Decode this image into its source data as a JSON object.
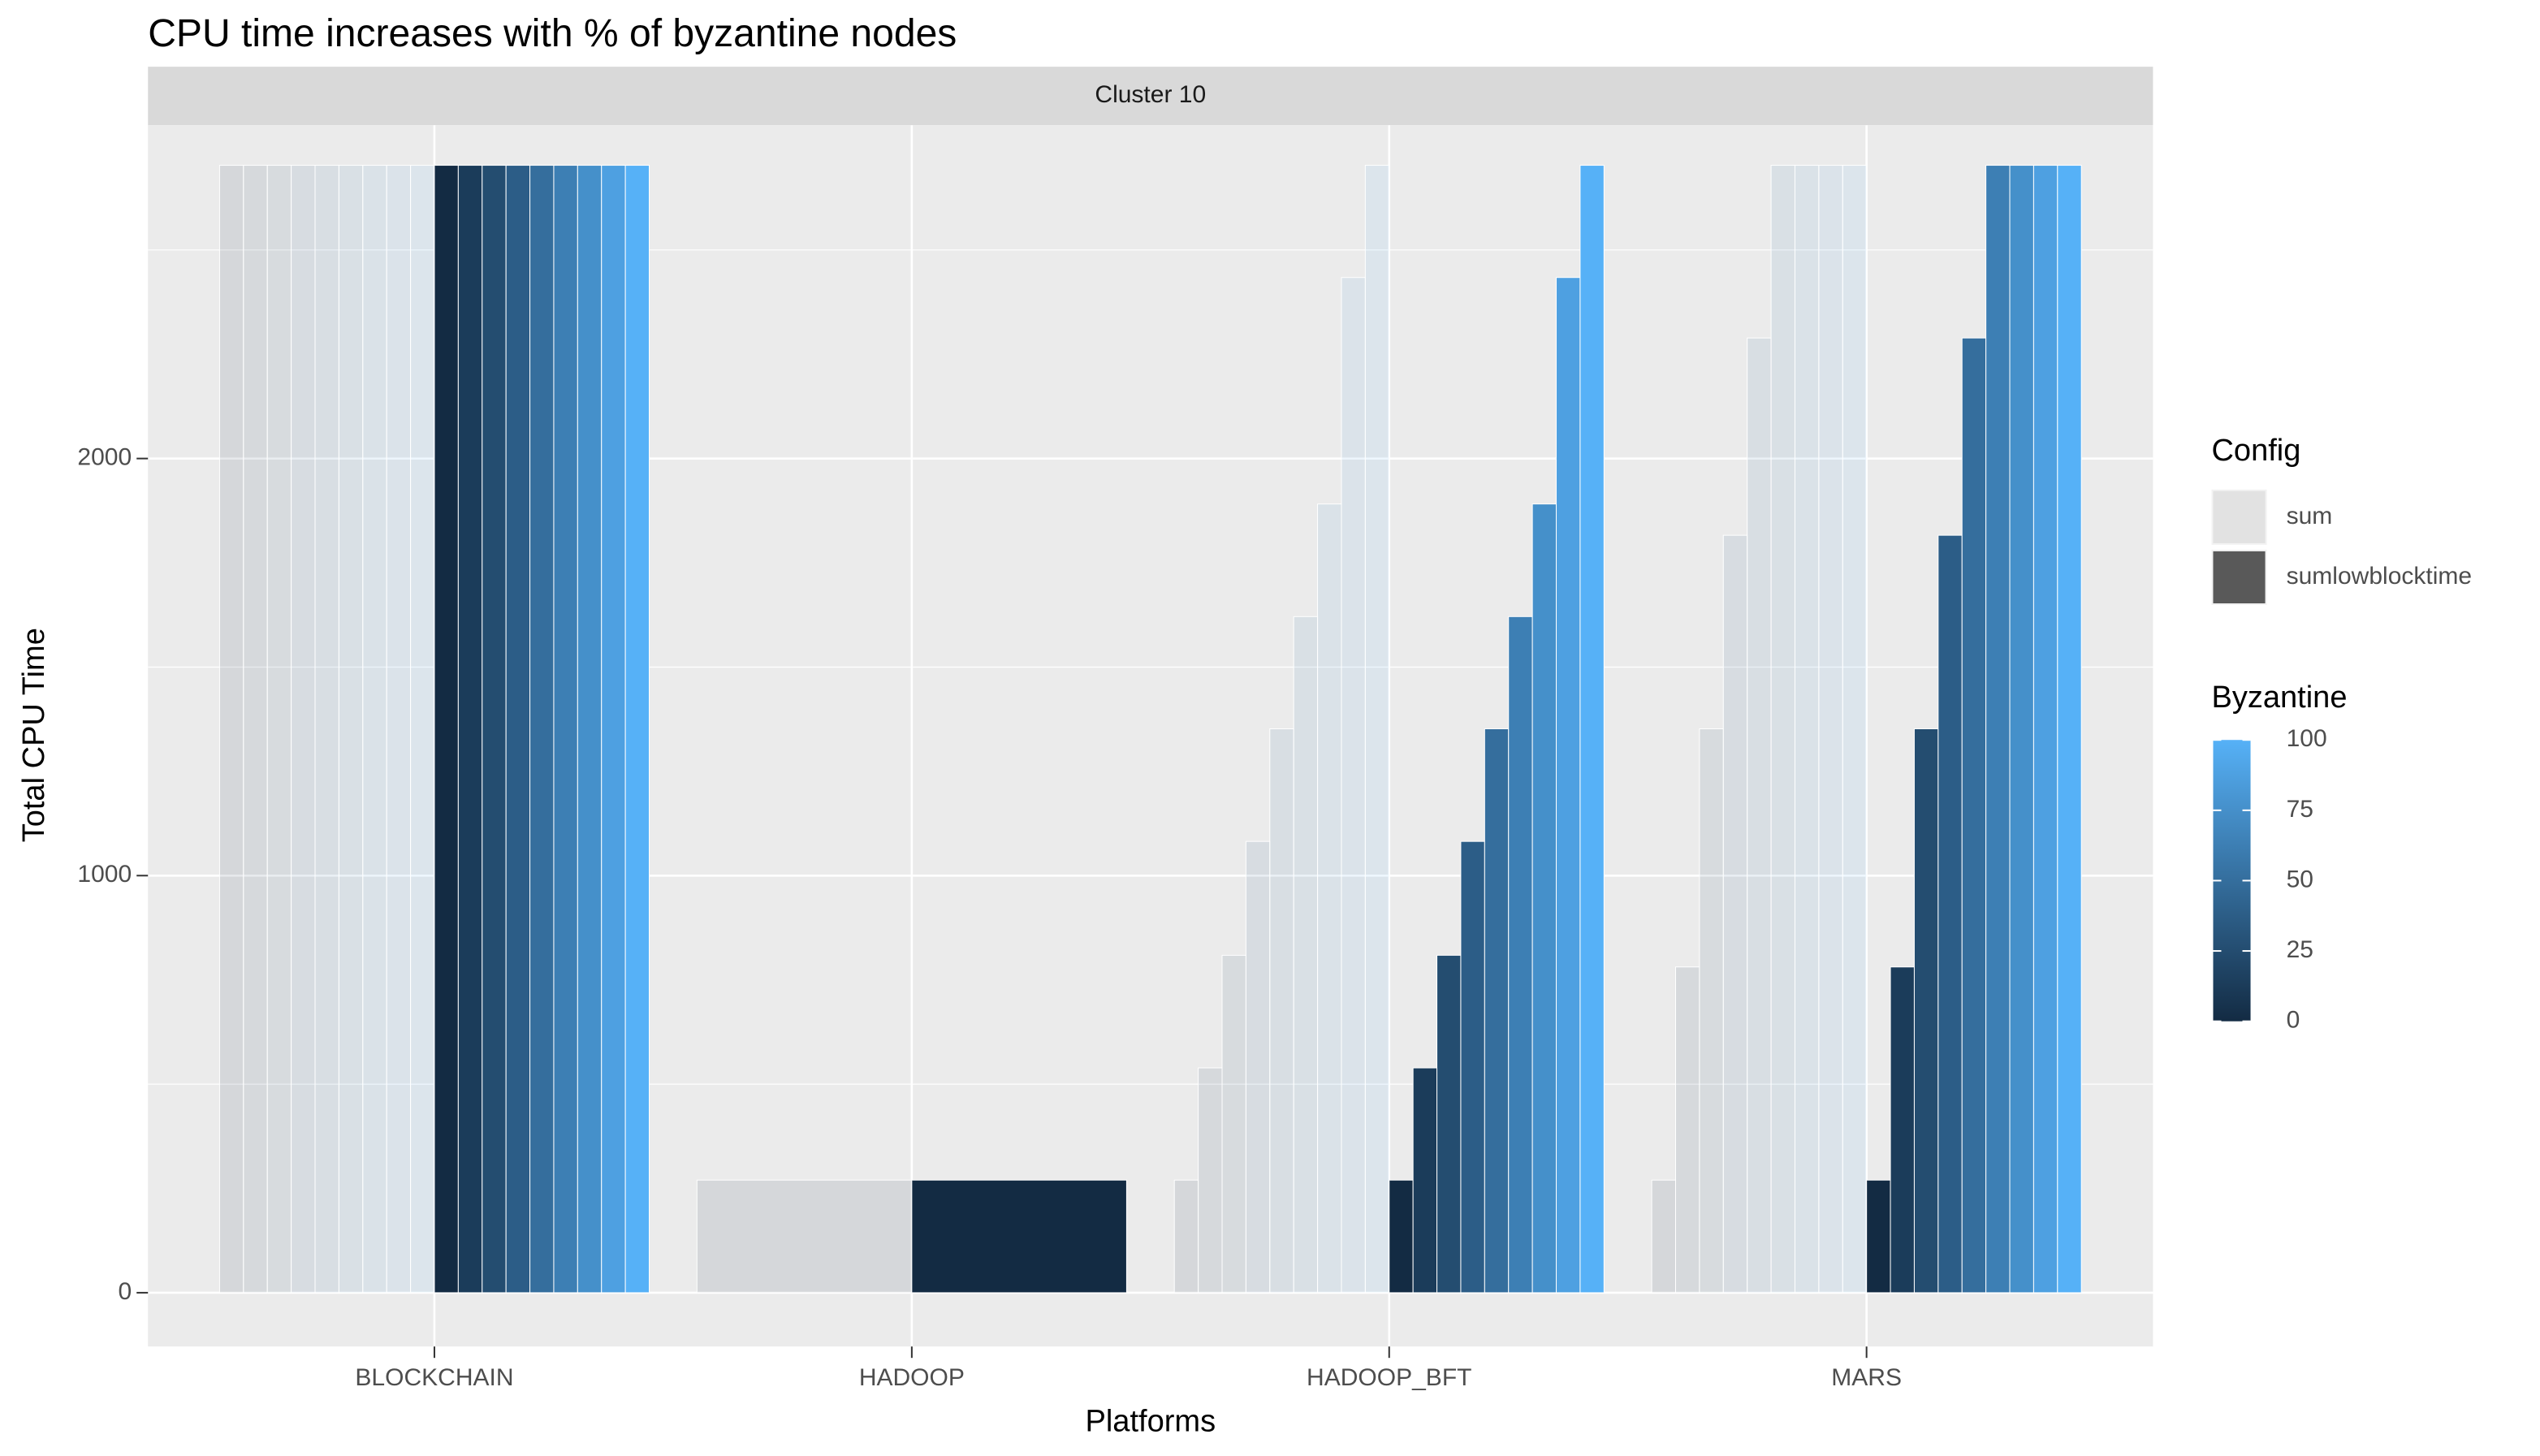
{
  "chart_data": {
    "type": "bar",
    "title": "CPU time increases with % of byzantine nodes",
    "facet": "Cluster 10",
    "xlabel": "Platforms",
    "ylabel": "Total CPU Time",
    "categories": [
      "BLOCKCHAIN",
      "HADOOP",
      "HADOOP_BFT",
      "MARS"
    ],
    "ylim": [
      -129,
      2799
    ],
    "yticks": [
      0,
      1000,
      2000
    ],
    "minor_yticks": [
      500,
      1500,
      2500
    ],
    "grid": true,
    "config_legend_title": "Config",
    "color_legend_title": "Byzantine",
    "colorbar": {
      "low": "#132B43",
      "high": "#56B1F7",
      "lim": [
        0,
        100
      ],
      "ticks": [
        0,
        25,
        50,
        75,
        100
      ]
    },
    "series": [
      {
        "name": "sum",
        "alpha": 0.1,
        "byzantine": [
          [
            0,
            12.5,
            25,
            37.5,
            50,
            62.5,
            75,
            87.5,
            100
          ],
          [
            0
          ],
          [
            0,
            12.5,
            25,
            37.5,
            50,
            62.5,
            75,
            87.5,
            100
          ],
          [
            0,
            12.5,
            25,
            37.5,
            50,
            62.5,
            75,
            87.5,
            100
          ]
        ],
        "values": [
          [
            2703,
            2703,
            2703,
            2703,
            2703,
            2703,
            2703,
            2703,
            2703
          ],
          [
            270
          ],
          [
            270,
            539,
            809,
            1082,
            1352,
            1621,
            1891,
            2434,
            2703
          ],
          [
            270,
            781,
            1352,
            1816,
            2289,
            2703,
            2703,
            2703,
            2703
          ]
        ]
      },
      {
        "name": "sumlowblocktime",
        "alpha": 1,
        "byzantine": [
          [
            0,
            12.5,
            25,
            37.5,
            50,
            62.5,
            75,
            87.5,
            100
          ],
          [
            0
          ],
          [
            0,
            12.5,
            25,
            37.5,
            50,
            62.5,
            75,
            87.5,
            100
          ],
          [
            0,
            12.5,
            25,
            37.5,
            50,
            62.5,
            75,
            87.5,
            100
          ]
        ],
        "values": [
          [
            2703,
            2703,
            2703,
            2703,
            2703,
            2703,
            2703,
            2703,
            2703
          ],
          [
            270
          ],
          [
            270,
            539,
            809,
            1082,
            1352,
            1621,
            1891,
            2434,
            2703
          ],
          [
            270,
            781,
            1352,
            1816,
            2289,
            2703,
            2703,
            2703,
            2703
          ]
        ]
      }
    ]
  }
}
